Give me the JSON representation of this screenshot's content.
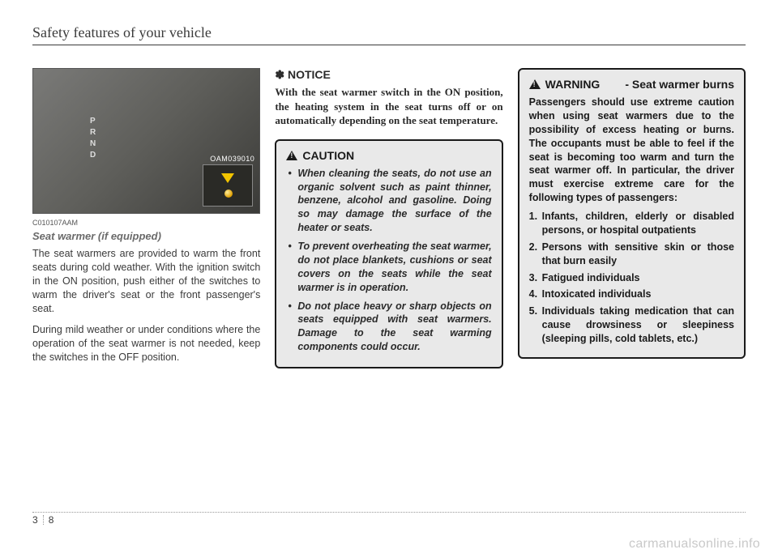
{
  "header": {
    "title": "Safety features of your vehicle"
  },
  "col1": {
    "figure_code": "OAM039010",
    "gear_letters": "P\nR\nN\nD",
    "code": "C010107AAM",
    "subhead": "Seat warmer (if equipped)",
    "para1": "The seat warmers are provided to warm the front seats during cold weather. With the ignition switch in the ON position, push either of the switches to warm the driver's seat or the front passenger's seat.",
    "para2": "During mild weather or under conditions where the operation of the seat warmer is not needed, keep the switches in the OFF position."
  },
  "col2": {
    "notice_symbol": "✽",
    "notice_label": "NOTICE",
    "notice_body": "With the seat warmer switch in the ON position, the heating system in the seat turns off or on automatically depending on the seat temperature.",
    "caution_label": "CAUTION",
    "caution_items": [
      "When cleaning the seats, do not use an organic solvent such as paint thinner, benzene, alcohol and gasoline. Doing so may damage the surface of the heater or seats.",
      "To prevent overheating the seat warmer, do not place blankets, cushions or seat covers on the seats while the seat warmer is in operation.",
      "Do not place heavy or sharp objects on seats equipped with seat warmers. Damage to the seat warming components could occur."
    ]
  },
  "col3": {
    "warning_label": "WARNING",
    "warning_sub": "- Seat warmer burns",
    "warning_body": "Passengers should use extreme caution when using seat warmers due to the possibility of excess heating or burns. The occupants must be able to feel if the seat is becoming too warm and turn the seat warmer off. In particular, the driver must exercise extreme care for the following types of passengers:",
    "warning_items": [
      "Infants, children, elderly or disabled persons, or hospital outpatients",
      "Persons with sensitive skin or those that burn easily",
      "Fatigued individuals",
      "Intoxicated individuals",
      "Individuals taking medication that can cause drowsiness or sleepiness (sleeping pills, cold tablets, etc.)"
    ]
  },
  "footer": {
    "chapter": "3",
    "page": "8"
  },
  "watermark": "carmanualsonline.info"
}
